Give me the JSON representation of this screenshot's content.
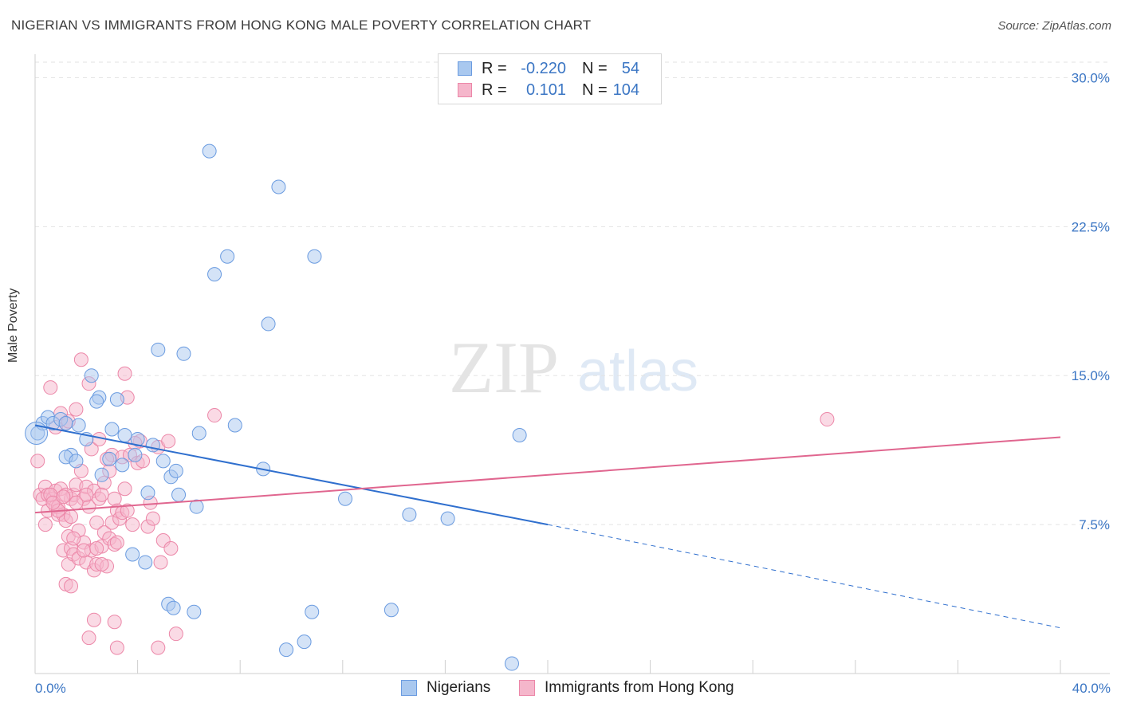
{
  "title": "NIGERIAN VS IMMIGRANTS FROM HONG KONG MALE POVERTY CORRELATION CHART",
  "source": "Source: ZipAtlas.com",
  "watermark": {
    "zip": "ZIP",
    "atlas": "atlas"
  },
  "legend": {
    "rows": [
      {
        "r_label": "R =",
        "r_value": "-0.220",
        "n_label": "N =",
        "n_value": "54"
      },
      {
        "r_label": "R =",
        "r_value": "0.101",
        "n_label": "N =",
        "n_value": "104"
      }
    ]
  },
  "bottom_legend": [
    "Nigerians",
    "Immigrants from Hong Kong"
  ],
  "colors": {
    "blue_fill": "#a9c8ef",
    "blue_stroke": "#6a9be0",
    "blue_line": "#2f6fce",
    "pink_fill": "#f5b6cb",
    "pink_stroke": "#ec87a8",
    "pink_line": "#e0668f",
    "grid": "#e3e3e3",
    "axis_text": "#3b76c4"
  },
  "chart_data": {
    "type": "scatter",
    "title": "NIGERIAN VS IMMIGRANTS FROM HONG KONG MALE POVERTY CORRELATION CHART",
    "xlabel": "",
    "ylabel": "Male Poverty",
    "xlim": [
      0,
      40
    ],
    "ylim": [
      0,
      30.9
    ],
    "x_tick_labels": [
      "0.0%",
      "40.0%"
    ],
    "y_ticks": [
      7.5,
      15.0,
      22.5,
      30.0
    ],
    "y_tick_labels": [
      "7.5%",
      "15.0%",
      "22.5%",
      "30.0%"
    ],
    "series": [
      {
        "name": "Nigerians",
        "R": -0.22,
        "N": 54,
        "points": [
          [
            0.1,
            12.1
          ],
          [
            0.3,
            12.6
          ],
          [
            0.5,
            12.9
          ],
          [
            0.7,
            12.6
          ],
          [
            1.0,
            12.8
          ],
          [
            1.2,
            12.6
          ],
          [
            1.7,
            12.5
          ],
          [
            1.4,
            11.0
          ],
          [
            1.2,
            10.9
          ],
          [
            1.6,
            10.7
          ],
          [
            2.0,
            11.8
          ],
          [
            2.2,
            15.0
          ],
          [
            2.5,
            13.9
          ],
          [
            2.4,
            13.7
          ],
          [
            2.6,
            10.0
          ],
          [
            2.9,
            10.8
          ],
          [
            3.0,
            12.3
          ],
          [
            3.2,
            13.8
          ],
          [
            3.4,
            10.5
          ],
          [
            3.5,
            12.0
          ],
          [
            3.9,
            11.0
          ],
          [
            4.0,
            11.8
          ],
          [
            4.4,
            9.1
          ],
          [
            4.6,
            11.5
          ],
          [
            4.8,
            16.3
          ],
          [
            5.0,
            10.7
          ],
          [
            5.3,
            9.9
          ],
          [
            5.5,
            10.2
          ],
          [
            5.6,
            9.0
          ],
          [
            5.8,
            16.1
          ],
          [
            6.3,
            8.4
          ],
          [
            6.4,
            12.1
          ],
          [
            6.8,
            26.3
          ],
          [
            7.0,
            20.1
          ],
          [
            7.5,
            21.0
          ],
          [
            7.8,
            12.5
          ],
          [
            8.9,
            10.3
          ],
          [
            9.1,
            17.6
          ],
          [
            9.5,
            24.5
          ],
          [
            10.9,
            21.0
          ],
          [
            12.1,
            8.8
          ],
          [
            14.6,
            8.0
          ],
          [
            16.1,
            7.8
          ],
          [
            18.9,
            12.0
          ],
          [
            3.8,
            6.0
          ],
          [
            4.3,
            5.6
          ],
          [
            5.2,
            3.5
          ],
          [
            5.4,
            3.3
          ],
          [
            6.2,
            3.1
          ],
          [
            10.8,
            3.1
          ],
          [
            13.9,
            3.2
          ],
          [
            10.5,
            1.6
          ],
          [
            9.8,
            1.2
          ],
          [
            18.6,
            0.5
          ]
        ],
        "trend": {
          "x0": 0,
          "y0": 12.5,
          "x1": 20.0,
          "y1": 7.5,
          "dash_x1": 40,
          "dash_y1": 2.3
        }
      },
      {
        "name": "Immigrants from Hong Kong",
        "R": 0.101,
        "N": 104,
        "points": [
          [
            0.1,
            10.7
          ],
          [
            0.2,
            9.0
          ],
          [
            0.3,
            8.8
          ],
          [
            0.4,
            9.4
          ],
          [
            0.4,
            7.5
          ],
          [
            0.5,
            9.0
          ],
          [
            0.5,
            8.2
          ],
          [
            0.6,
            14.4
          ],
          [
            0.7,
            8.8
          ],
          [
            0.8,
            9.2
          ],
          [
            0.8,
            8.4
          ],
          [
            0.9,
            8.0
          ],
          [
            0.9,
            8.4
          ],
          [
            1.0,
            13.1
          ],
          [
            1.0,
            9.3
          ],
          [
            1.1,
            8.0
          ],
          [
            1.1,
            6.2
          ],
          [
            1.2,
            12.6
          ],
          [
            1.2,
            7.7
          ],
          [
            1.3,
            6.9
          ],
          [
            1.3,
            5.5
          ],
          [
            1.4,
            8.8
          ],
          [
            1.4,
            6.3
          ],
          [
            1.5,
            9.0
          ],
          [
            1.5,
            6.0
          ],
          [
            1.6,
            13.3
          ],
          [
            1.6,
            9.5
          ],
          [
            1.7,
            7.2
          ],
          [
            1.7,
            5.8
          ],
          [
            1.8,
            15.8
          ],
          [
            1.8,
            10.2
          ],
          [
            1.9,
            8.8
          ],
          [
            1.9,
            6.6
          ],
          [
            2.0,
            9.4
          ],
          [
            2.0,
            5.6
          ],
          [
            2.1,
            14.6
          ],
          [
            2.1,
            8.4
          ],
          [
            2.2,
            11.3
          ],
          [
            2.2,
            6.2
          ],
          [
            2.3,
            9.2
          ],
          [
            2.3,
            5.2
          ],
          [
            2.4,
            7.6
          ],
          [
            2.4,
            5.5
          ],
          [
            2.5,
            11.8
          ],
          [
            2.5,
            8.8
          ],
          [
            2.6,
            6.4
          ],
          [
            2.7,
            9.6
          ],
          [
            2.7,
            7.1
          ],
          [
            2.8,
            5.4
          ],
          [
            2.9,
            10.2
          ],
          [
            2.9,
            6.8
          ],
          [
            3.0,
            11.0
          ],
          [
            3.0,
            7.6
          ],
          [
            3.1,
            8.8
          ],
          [
            3.1,
            6.5
          ],
          [
            3.2,
            8.2
          ],
          [
            3.3,
            7.8
          ],
          [
            3.4,
            10.9
          ],
          [
            3.4,
            8.1
          ],
          [
            3.5,
            15.1
          ],
          [
            3.5,
            9.3
          ],
          [
            3.6,
            13.9
          ],
          [
            3.7,
            11.0
          ],
          [
            3.8,
            7.5
          ],
          [
            4.0,
            10.6
          ],
          [
            4.1,
            11.7
          ],
          [
            4.2,
            10.7
          ],
          [
            4.4,
            7.4
          ],
          [
            4.5,
            8.6
          ],
          [
            4.6,
            7.8
          ],
          [
            4.8,
            11.4
          ],
          [
            4.9,
            5.6
          ],
          [
            5.0,
            6.7
          ],
          [
            5.2,
            11.7
          ],
          [
            5.3,
            6.3
          ],
          [
            7.0,
            13.0
          ],
          [
            30.9,
            12.8
          ],
          [
            1.2,
            4.5
          ],
          [
            1.4,
            4.4
          ],
          [
            2.3,
            2.7
          ],
          [
            2.1,
            1.8
          ],
          [
            3.2,
            1.3
          ],
          [
            3.1,
            2.6
          ],
          [
            4.8,
            1.3
          ],
          [
            5.5,
            2.0
          ],
          [
            0.9,
            8.2
          ],
          [
            1.2,
            9.0
          ],
          [
            1.6,
            8.6
          ],
          [
            2.6,
            9.0
          ],
          [
            3.6,
            8.2
          ],
          [
            1.4,
            7.9
          ],
          [
            0.6,
            9.0
          ],
          [
            0.7,
            8.6
          ],
          [
            1.1,
            8.9
          ],
          [
            2.8,
            10.8
          ],
          [
            2.0,
            9.0
          ],
          [
            1.9,
            6.2
          ],
          [
            2.4,
            6.3
          ],
          [
            3.2,
            6.6
          ],
          [
            1.5,
            6.8
          ],
          [
            2.6,
            5.5
          ],
          [
            3.9,
            11.6
          ],
          [
            1.3,
            12.7
          ],
          [
            0.8,
            12.4
          ]
        ],
        "trend": {
          "x0": 0,
          "y0": 8.1,
          "x1": 40,
          "y1": 11.9
        }
      }
    ]
  }
}
